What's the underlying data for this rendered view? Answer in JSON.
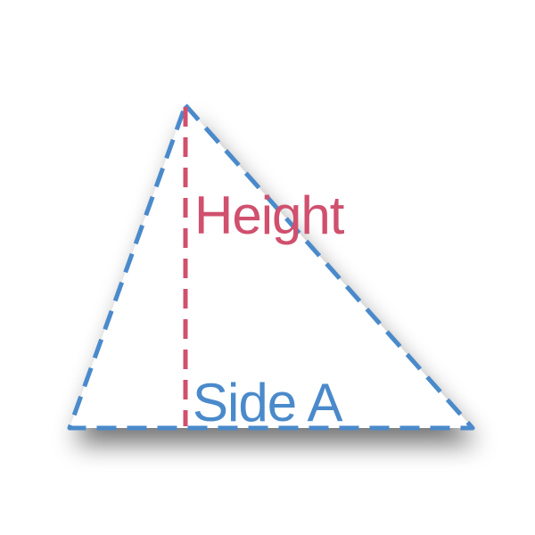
{
  "labels": {
    "height": "Height",
    "side_a": "Side A"
  },
  "colors": {
    "outline": "#4a8acb",
    "height_line": "#d0506e",
    "height_text": "#d0506e",
    "side_text": "#4a8acb",
    "fill": "#ffffff",
    "shadow": "#000000"
  }
}
